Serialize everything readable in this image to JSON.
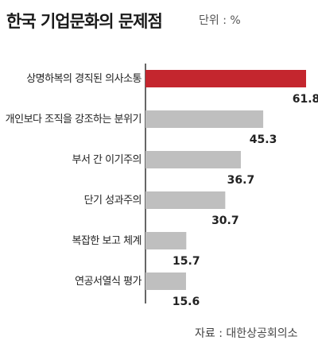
{
  "chart_data": {
    "type": "bar",
    "orientation": "horizontal",
    "title": "한국 기업문화의 문제점",
    "unit": "단위 : %",
    "source": "자료 : 대한상공회의소",
    "categories": [
      "상명하복의 경직된 의사소통",
      "개인보다 조직을 강조하는 분위기",
      "부서 간 이기주의",
      "단기 성과주의",
      "복잡한 보고 체계",
      "연공서열식 평가"
    ],
    "values": [
      61.8,
      45.3,
      36.7,
      30.7,
      15.7,
      15.6
    ],
    "value_labels": [
      "61.8",
      "45.3",
      "36.7",
      "30.7",
      "15.7",
      "15.6"
    ],
    "xlim": [
      0,
      65
    ],
    "grid": false,
    "highlight_color": "#c4262e",
    "bar_color": "#bfbfbf"
  }
}
